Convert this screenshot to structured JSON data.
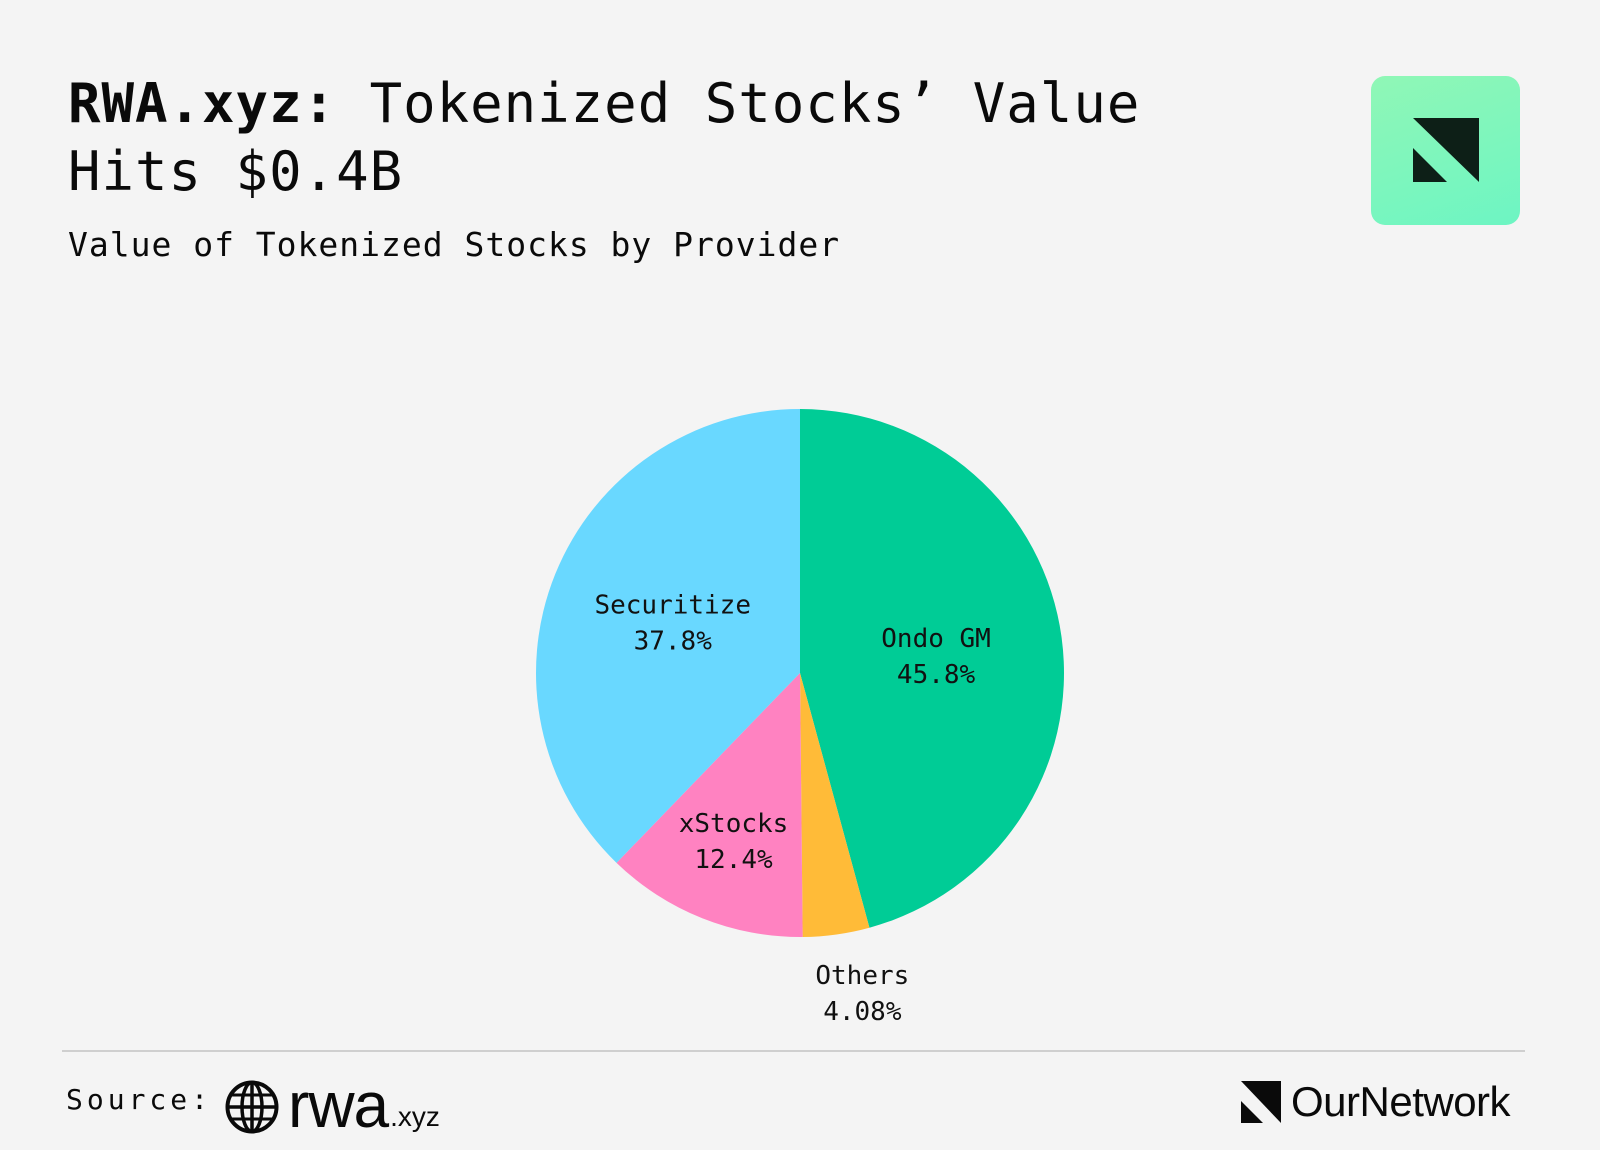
{
  "header": {
    "title_bold": "RWA.xyz:",
    "title_rest": " Tokenized Stocks’ Value Hits $0.4B",
    "subtitle": "Value of Tokenized Stocks by Provider"
  },
  "chart_data": {
    "type": "pie",
    "title": "Value of Tokenized Stocks by Provider",
    "start_angle_deg": 0,
    "direction": "clockwise",
    "slices": [
      {
        "label": "Ondo GM",
        "value": 45.8,
        "value_label": "45.8%",
        "color": "#00cc96"
      },
      {
        "label": "Others",
        "value": 4.08,
        "value_label": "4.08%",
        "color": "#ffbb38"
      },
      {
        "label": "xStocks",
        "value": 12.4,
        "value_label": "12.4%",
        "color": "#ff82c1"
      },
      {
        "label": "Securitize",
        "value": 37.8,
        "value_label": "37.8%",
        "color": "#69d8ff"
      }
    ]
  },
  "footer": {
    "source_label": "Source:",
    "source_brand": "rwa",
    "source_brand_tld": ".xyz",
    "publisher": "OurNetwork"
  },
  "colors": {
    "background": "#f4f4f4",
    "logo_tile": "#7ff7bd",
    "logo_mark": "#0d1f17"
  }
}
